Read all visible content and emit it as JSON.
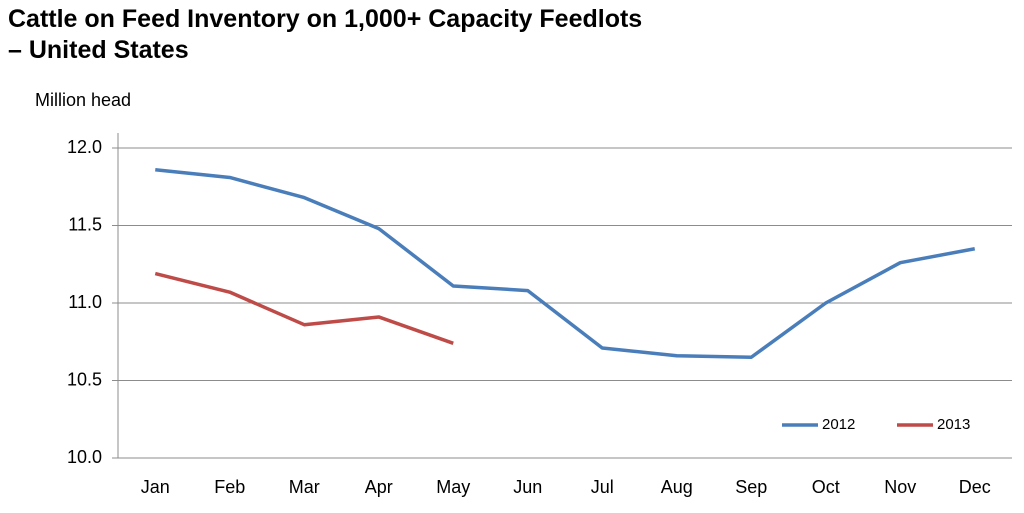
{
  "chart_data": {
    "type": "line",
    "title": "Cattle on Feed Inventory on 1,000+ Capacity Feedlots – United States",
    "y_axis_label": "Million head",
    "categories": [
      "Jan",
      "Feb",
      "Mar",
      "Apr",
      "May",
      "Jun",
      "Jul",
      "Aug",
      "Sep",
      "Oct",
      "Nov",
      "Dec"
    ],
    "series": [
      {
        "name": "2012",
        "color": "#4a7ebb",
        "values": [
          11.86,
          11.81,
          11.68,
          11.48,
          11.11,
          11.08,
          10.71,
          10.66,
          10.65,
          11.0,
          11.26,
          11.35
        ]
      },
      {
        "name": "2013",
        "color": "#be4b48",
        "values": [
          11.19,
          11.07,
          10.86,
          10.91,
          10.74,
          null,
          null,
          null,
          null,
          null,
          null,
          null
        ]
      }
    ],
    "ylim": [
      10,
      12
    ],
    "yticks": [
      {
        "value": 10,
        "label": "10.0"
      },
      10.5,
      {
        "value": 11,
        "label": "11.0"
      },
      11.5,
      {
        "value": 12,
        "label": "12.0"
      }
    ],
    "grid": true,
    "legend": "lower right"
  }
}
